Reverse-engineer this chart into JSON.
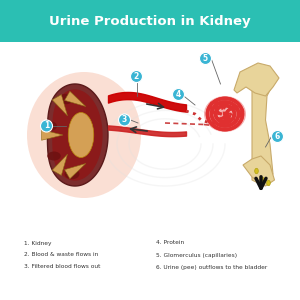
{
  "title": "Urine Production in Kidney",
  "title_bg_color": "#2bbfb3",
  "title_text_color": "#ffffff",
  "bg_color": "#ffffff",
  "legend_items": [
    "1. Kidney",
    "2. Blood & waste flows in",
    "3. Filtered blood flows out",
    "4. Protein",
    "5. Glomerculus (capillaries)",
    "6. Urine (pee) outflows to the bladder"
  ],
  "kidney_outer_color": "#7b2d2d",
  "kidney_inner_color": "#c0392b",
  "kidney_medulla_color": "#a0522d",
  "kidney_pelvis_color": "#d4a055",
  "kidney_glow_color": "#f5b8a0",
  "blood_in_color": "#cc0000",
  "blood_out_color": "#cc0000",
  "glomerulus_color": "#e03030",
  "tubule_color": "#cc0000",
  "bone_color": "#e8d49a",
  "bone_dark_color": "#c8aa6a",
  "urine_color": "#f0e060",
  "label_circle_color": "#3ab5d4",
  "label_text_color": "#ffffff",
  "watermark_color": "#e0e0e0"
}
